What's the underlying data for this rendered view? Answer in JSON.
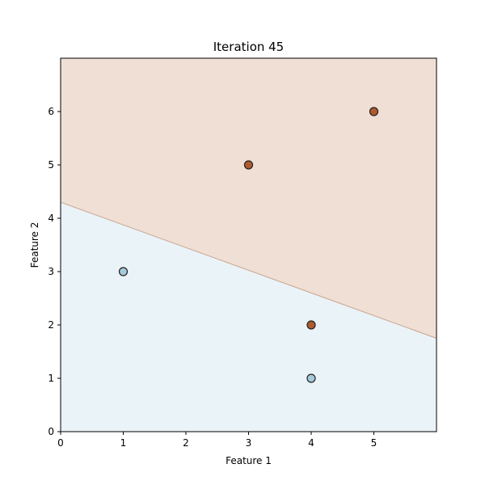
{
  "chart_data": {
    "type": "scatter",
    "title": "Iteration 45",
    "xlabel": "Feature 1",
    "ylabel": "Feature 2",
    "xlim": [
      0,
      6
    ],
    "ylim": [
      0,
      7
    ],
    "xticks": [
      "0",
      "1",
      "2",
      "3",
      "4",
      "5"
    ],
    "yticks": [
      "0",
      "1",
      "2",
      "3",
      "4",
      "5",
      "6"
    ],
    "grid": false,
    "decision_boundary": {
      "points": [
        [
          0,
          4.3
        ],
        [
          6,
          1.75
        ]
      ],
      "region_above_color": "#efdfd4",
      "region_below_color": "#eaf3f8",
      "line_color": "#c9a48f"
    },
    "classes": [
      {
        "label": "0",
        "color": "#a7c9dc"
      },
      {
        "label": "1",
        "color": "#b05a2f"
      }
    ],
    "points": [
      {
        "x": 1,
        "y": 3,
        "class": 0
      },
      {
        "x": 4,
        "y": 1,
        "class": 0
      },
      {
        "x": 3,
        "y": 5,
        "class": 1
      },
      {
        "x": 5,
        "y": 6,
        "class": 1
      },
      {
        "x": 4,
        "y": 2,
        "class": 1
      }
    ]
  }
}
